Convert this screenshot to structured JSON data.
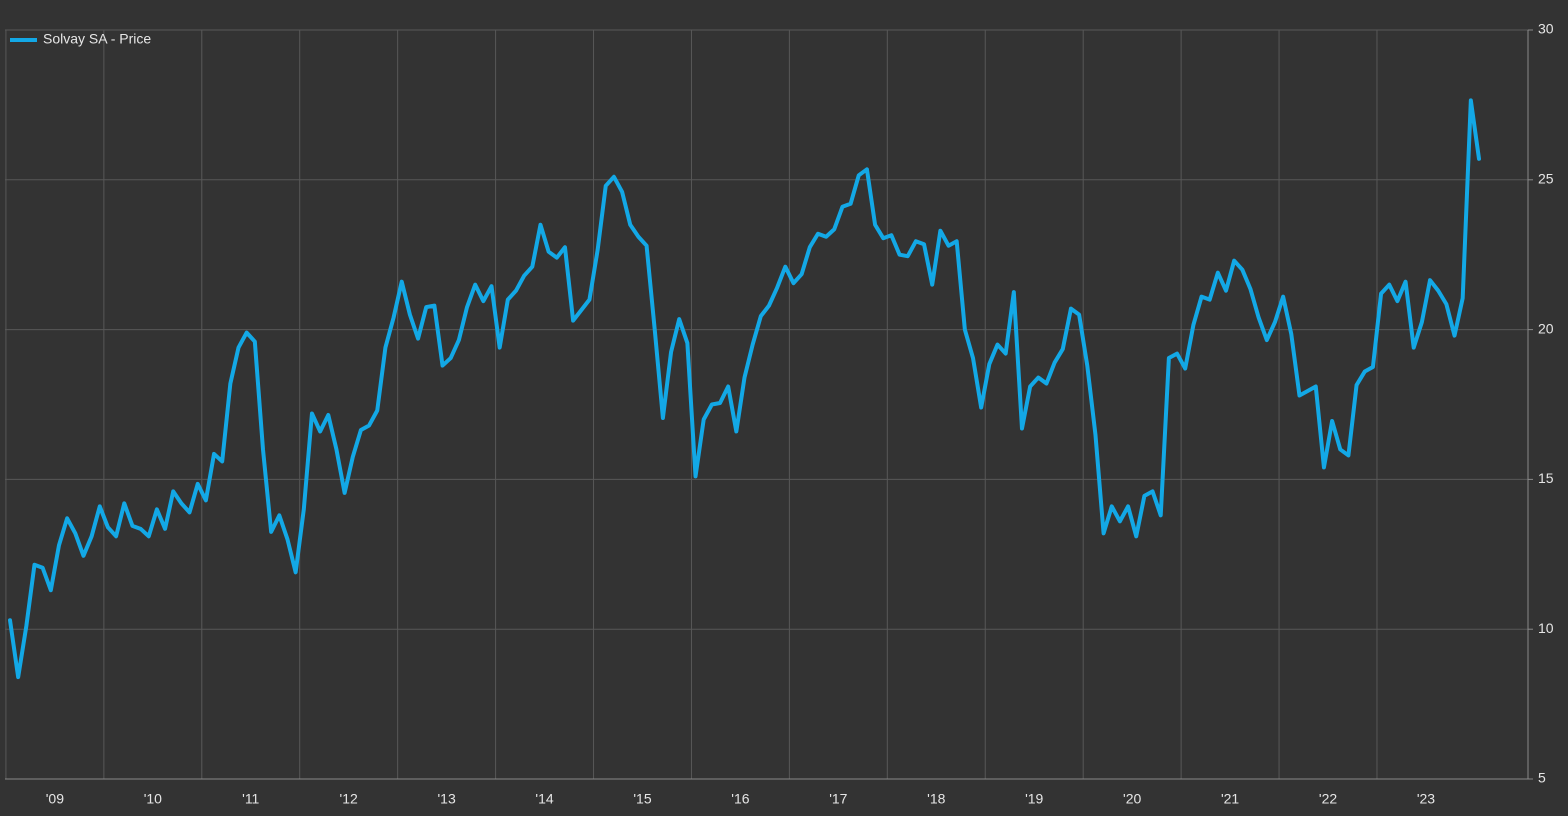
{
  "chart_data": {
    "type": "line",
    "series": [
      {
        "name": "Solvay SA - Price",
        "color": "#13a8e6",
        "values": [
          10.3,
          8.4,
          10.1,
          12.15,
          12.05,
          11.3,
          12.8,
          13.7,
          13.2,
          12.45,
          13.1,
          14.1,
          13.4,
          13.1,
          14.2,
          13.45,
          13.35,
          13.1,
          14.0,
          13.35,
          14.6,
          14.2,
          13.9,
          14.85,
          14.3,
          15.85,
          15.6,
          18.2,
          19.4,
          19.9,
          19.6,
          16.0,
          13.25,
          13.8,
          13.0,
          11.9,
          14.0,
          17.2,
          16.6,
          17.15,
          16.0,
          14.55,
          15.75,
          16.65,
          16.8,
          17.3,
          19.4,
          20.4,
          21.6,
          20.5,
          19.7,
          20.75,
          20.8,
          18.8,
          19.05,
          19.65,
          20.75,
          21.5,
          20.95,
          21.45,
          19.4,
          21.0,
          21.3,
          21.8,
          22.1,
          23.5,
          22.6,
          22.4,
          22.75,
          20.3,
          20.65,
          21.0,
          22.65,
          24.8,
          25.1,
          24.6,
          23.5,
          23.1,
          22.8,
          20.0,
          17.05,
          19.25,
          20.35,
          19.55,
          15.1,
          17.0,
          17.5,
          17.55,
          18.1,
          16.6,
          18.4,
          19.5,
          20.45,
          20.8,
          21.4,
          22.1,
          21.55,
          21.85,
          22.75,
          23.2,
          23.1,
          23.35,
          24.1,
          24.2,
          25.15,
          25.35,
          23.5,
          23.05,
          23.15,
          22.5,
          22.45,
          22.95,
          22.85,
          21.5,
          23.3,
          22.8,
          22.95,
          20.0,
          19.05,
          17.4,
          18.85,
          19.5,
          19.2,
          21.25,
          16.7,
          18.1,
          18.4,
          18.2,
          18.9,
          19.35,
          20.7,
          20.5,
          18.8,
          16.5,
          13.2,
          14.1,
          13.6,
          14.1,
          13.1,
          14.45,
          14.6,
          13.8,
          19.05,
          19.2,
          18.7,
          20.15,
          21.1,
          21.0,
          21.9,
          21.3,
          22.3,
          22.0,
          21.35,
          20.4,
          19.65,
          20.25,
          21.1,
          19.85,
          17.8,
          17.95,
          18.1,
          15.4,
          16.95,
          16.0,
          15.8,
          18.15,
          18.6,
          18.75,
          21.2,
          21.5,
          20.95,
          21.6,
          19.4,
          20.25,
          21.65,
          21.3,
          20.85,
          19.8,
          21.05,
          27.65,
          25.7
        ]
      }
    ],
    "categories": [
      null,
      null,
      null,
      null,
      null,
      null,
      "'09",
      null,
      null,
      null,
      null,
      null,
      null,
      null,
      null,
      null,
      null,
      null,
      "'10",
      null,
      null,
      null,
      null,
      null,
      null,
      null,
      null,
      null,
      null,
      null,
      "'11",
      null,
      null,
      null,
      null,
      null,
      null,
      null,
      null,
      null,
      null,
      null,
      "'12",
      null,
      null,
      null,
      null,
      null,
      null,
      null,
      null,
      null,
      null,
      null,
      "'13",
      null,
      null,
      null,
      null,
      null,
      null,
      null,
      null,
      null,
      null,
      null,
      "'14",
      null,
      null,
      null,
      null,
      null,
      null,
      null,
      null,
      null,
      null,
      null,
      "'15",
      null,
      null,
      null,
      null,
      null,
      null,
      null,
      null,
      null,
      null,
      null,
      "'16",
      null,
      null,
      null,
      null,
      null,
      null,
      null,
      null,
      null,
      null,
      null,
      "'17",
      null,
      null,
      null,
      null,
      null,
      null,
      null,
      null,
      null,
      null,
      null,
      "'18",
      null,
      null,
      null,
      null,
      null,
      null,
      null,
      null,
      null,
      null,
      null,
      "'19",
      null,
      null,
      null,
      null,
      null,
      null,
      null,
      null,
      null,
      null,
      null,
      "'20",
      null,
      null,
      null,
      null,
      null,
      null,
      null,
      null,
      null,
      null,
      null,
      "'21",
      null,
      null,
      null,
      null,
      null,
      null,
      null,
      null,
      null,
      null,
      null,
      "'22",
      null,
      null,
      null,
      null,
      null,
      null,
      null,
      null,
      null,
      null,
      null,
      "'23",
      null,
      null,
      null,
      null,
      null,
      null
    ],
    "ylim": [
      5,
      30
    ],
    "yticks": [
      5,
      10,
      15,
      20,
      25,
      30
    ],
    "grid": true,
    "legend": "top-left"
  }
}
